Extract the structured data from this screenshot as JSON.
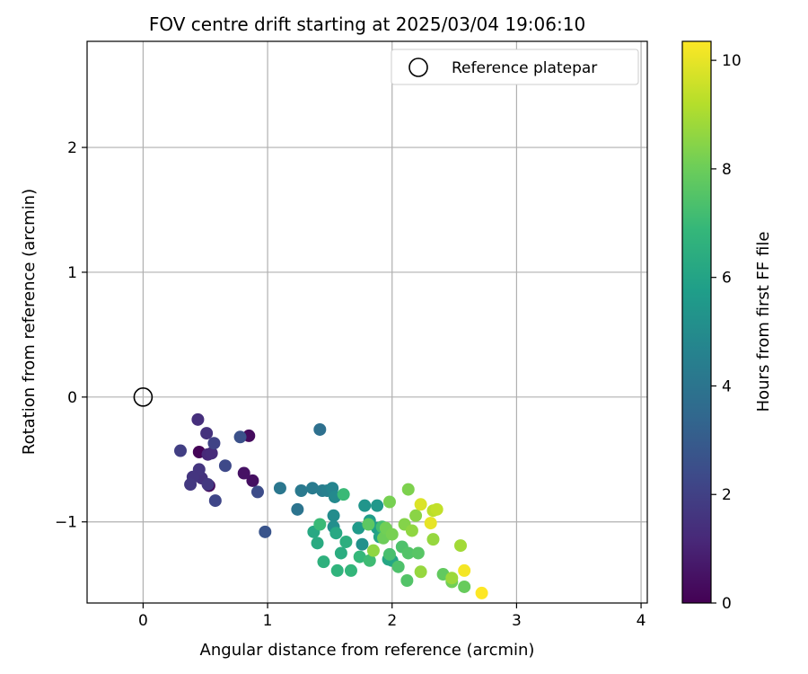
{
  "chart_data": {
    "type": "scatter",
    "title": "FOV centre drift starting at 2025/03/04 19:06:10",
    "xlabel": "Angular distance from reference (arcmin)",
    "ylabel": "Rotation from reference (arcmin)",
    "xlim": [
      -0.45,
      4.05
    ],
    "ylim": [
      -1.65,
      2.85
    ],
    "xticks": [
      0,
      1,
      2,
      3,
      4
    ],
    "xtick_labels": [
      "0",
      "1",
      "2",
      "3",
      "4"
    ],
    "yticks": [
      -1,
      0,
      1,
      2
    ],
    "ytick_labels": [
      "−1",
      "0",
      "1",
      "2"
    ],
    "grid": true,
    "legend": {
      "placement": "top-right",
      "entries": [
        {
          "label": "Reference platepar",
          "marker": "open-circle"
        }
      ]
    },
    "reference_point": {
      "x": 0,
      "y": 0
    },
    "colorbar": {
      "label": "Hours from first FF file",
      "colormap": "viridis",
      "range": [
        0,
        10.35
      ],
      "ticks": [
        0,
        2,
        4,
        6,
        8,
        10
      ],
      "tick_labels": [
        "0",
        "2",
        "4",
        "6",
        "8",
        "10"
      ],
      "colors": [
        "#440154",
        "#482878",
        "#3e4989",
        "#31688e",
        "#26828e",
        "#1f9e89",
        "#35b779",
        "#6ece58",
        "#b5de2b",
        "#fde725"
      ]
    },
    "series": [
      {
        "points": [
          {
            "x": 0.45,
            "y": -0.44,
            "t": 0.1
          },
          {
            "x": 0.53,
            "y": -0.71,
            "t": 0.2
          },
          {
            "x": 0.85,
            "y": -0.31,
            "t": 0.3
          },
          {
            "x": 0.88,
            "y": -0.67,
            "t": 0.4
          },
          {
            "x": 0.81,
            "y": -0.61,
            "t": 0.5
          },
          {
            "x": 0.52,
            "y": -0.46,
            "t": 1.2
          },
          {
            "x": 0.55,
            "y": -0.45,
            "t": 1.3
          },
          {
            "x": 0.44,
            "y": -0.18,
            "t": 1.4
          },
          {
            "x": 0.51,
            "y": -0.29,
            "t": 1.5
          },
          {
            "x": 0.47,
            "y": -0.65,
            "t": 1.5
          },
          {
            "x": 0.45,
            "y": -0.58,
            "t": 1.6
          },
          {
            "x": 0.4,
            "y": -0.64,
            "t": 1.6
          },
          {
            "x": 0.38,
            "y": -0.7,
            "t": 1.7
          },
          {
            "x": 0.52,
            "y": -0.7,
            "t": 1.7
          },
          {
            "x": 0.3,
            "y": -0.43,
            "t": 1.9
          },
          {
            "x": 0.57,
            "y": -0.37,
            "t": 2.1
          },
          {
            "x": 0.58,
            "y": -0.83,
            "t": 2.2
          },
          {
            "x": 0.66,
            "y": -0.55,
            "t": 2.3
          },
          {
            "x": 0.92,
            "y": -0.76,
            "t": 2.4
          },
          {
            "x": 0.78,
            "y": -0.32,
            "t": 2.6
          },
          {
            "x": 0.98,
            "y": -1.08,
            "t": 2.7
          },
          {
            "x": 1.42,
            "y": -0.26,
            "t": 3.8
          },
          {
            "x": 1.1,
            "y": -0.73,
            "t": 4.1
          },
          {
            "x": 1.24,
            "y": -0.9,
            "t": 4.0
          },
          {
            "x": 1.27,
            "y": -0.75,
            "t": 4.2
          },
          {
            "x": 1.36,
            "y": -0.73,
            "t": 4.3
          },
          {
            "x": 1.44,
            "y": -0.75,
            "t": 4.4
          },
          {
            "x": 1.48,
            "y": -0.75,
            "t": 4.5
          },
          {
            "x": 1.52,
            "y": -0.73,
            "t": 4.7
          },
          {
            "x": 1.54,
            "y": -0.8,
            "t": 4.9
          },
          {
            "x": 1.53,
            "y": -0.95,
            "t": 5.0
          },
          {
            "x": 1.53,
            "y": -1.04,
            "t": 5.1
          },
          {
            "x": 1.76,
            "y": -1.18,
            "t": 5.2
          },
          {
            "x": 1.78,
            "y": -0.87,
            "t": 5.4
          },
          {
            "x": 1.88,
            "y": -0.87,
            "t": 5.5
          },
          {
            "x": 1.73,
            "y": -1.05,
            "t": 5.6
          },
          {
            "x": 1.82,
            "y": -0.99,
            "t": 5.7
          },
          {
            "x": 1.88,
            "y": -1.05,
            "t": 5.8
          },
          {
            "x": 1.9,
            "y": -1.12,
            "t": 6.0
          },
          {
            "x": 1.97,
            "y": -1.3,
            "t": 6.1
          },
          {
            "x": 2.0,
            "y": -1.31,
            "t": 6.1
          },
          {
            "x": 1.37,
            "y": -1.08,
            "t": 6.2
          },
          {
            "x": 1.4,
            "y": -1.17,
            "t": 6.3
          },
          {
            "x": 1.55,
            "y": -1.09,
            "t": 6.2
          },
          {
            "x": 1.59,
            "y": -1.25,
            "t": 6.4
          },
          {
            "x": 1.63,
            "y": -1.16,
            "t": 6.5
          },
          {
            "x": 1.45,
            "y": -1.32,
            "t": 6.6
          },
          {
            "x": 1.56,
            "y": -1.39,
            "t": 6.7
          },
          {
            "x": 1.67,
            "y": -1.39,
            "t": 6.8
          },
          {
            "x": 1.74,
            "y": -1.28,
            "t": 6.9
          },
          {
            "x": 1.42,
            "y": -1.02,
            "t": 7.0
          },
          {
            "x": 1.61,
            "y": -0.78,
            "t": 7.0
          },
          {
            "x": 1.82,
            "y": -1.31,
            "t": 7.1
          },
          {
            "x": 1.92,
            "y": -1.04,
            "t": 7.2
          },
          {
            "x": 1.98,
            "y": -1.26,
            "t": 7.3
          },
          {
            "x": 2.05,
            "y": -1.36,
            "t": 7.4
          },
          {
            "x": 2.08,
            "y": -1.2,
            "t": 7.4
          },
          {
            "x": 2.13,
            "y": -1.25,
            "t": 7.5
          },
          {
            "x": 2.12,
            "y": -1.47,
            "t": 7.5
          },
          {
            "x": 2.21,
            "y": -1.25,
            "t": 7.6
          },
          {
            "x": 1.81,
            "y": -1.02,
            "t": 7.7
          },
          {
            "x": 2.41,
            "y": -1.42,
            "t": 7.8
          },
          {
            "x": 2.58,
            "y": -1.52,
            "t": 7.9
          },
          {
            "x": 2.48,
            "y": -1.48,
            "t": 8.1
          },
          {
            "x": 1.93,
            "y": -1.13,
            "t": 8.0
          },
          {
            "x": 1.95,
            "y": -1.05,
            "t": 8.1
          },
          {
            "x": 2.0,
            "y": -1.1,
            "t": 8.2
          },
          {
            "x": 1.98,
            "y": -0.84,
            "t": 8.2
          },
          {
            "x": 2.13,
            "y": -0.74,
            "t": 8.3
          },
          {
            "x": 2.1,
            "y": -1.02,
            "t": 8.4
          },
          {
            "x": 2.19,
            "y": -0.95,
            "t": 8.5
          },
          {
            "x": 2.16,
            "y": -1.07,
            "t": 8.6
          },
          {
            "x": 1.85,
            "y": -1.23,
            "t": 8.6
          },
          {
            "x": 2.33,
            "y": -1.14,
            "t": 8.7
          },
          {
            "x": 2.23,
            "y": -1.4,
            "t": 8.7
          },
          {
            "x": 2.48,
            "y": -1.45,
            "t": 8.8
          },
          {
            "x": 2.55,
            "y": -1.19,
            "t": 8.9
          },
          {
            "x": 2.33,
            "y": -0.91,
            "t": 9.3
          },
          {
            "x": 2.36,
            "y": -0.9,
            "t": 9.4
          },
          {
            "x": 2.23,
            "y": -0.86,
            "t": 9.8
          },
          {
            "x": 2.31,
            "y": -1.01,
            "t": 10.0
          },
          {
            "x": 2.58,
            "y": -1.39,
            "t": 10.2
          },
          {
            "x": 2.72,
            "y": -1.57,
            "t": 10.35
          }
        ]
      }
    ]
  }
}
